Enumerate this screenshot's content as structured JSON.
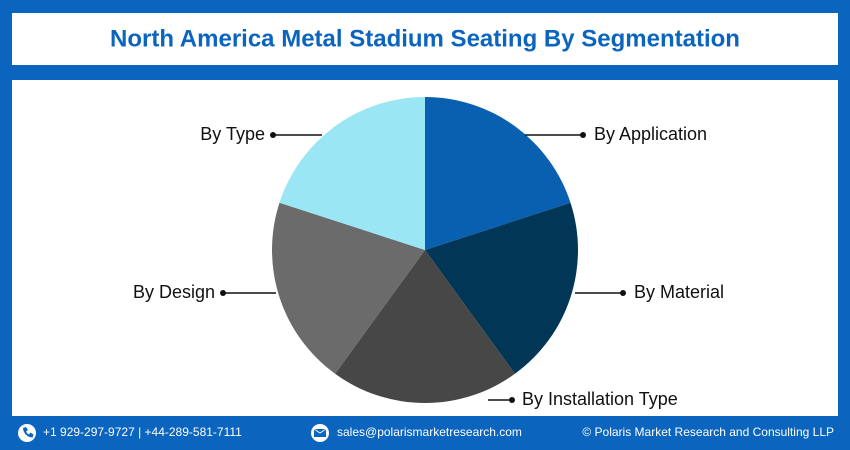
{
  "chart_data": {
    "type": "pie",
    "title": "North America Metal Stadium Seating By Segmentation",
    "categories": [
      "By Application",
      "By Material",
      "By Installation Type",
      "By Design",
      "By Type"
    ],
    "values": [
      20,
      20,
      20,
      20,
      20
    ],
    "colors": [
      "#0a60b0",
      "#023657",
      "#474747",
      "#6b6b6b",
      "#9be6f5"
    ]
  },
  "footer": {
    "phone": "+1 929-297-9727 | +44-289-581-7111",
    "email": "sales@polarismarketresearch.com",
    "copyright": "© Polaris Market Research and Consulting LLP"
  }
}
